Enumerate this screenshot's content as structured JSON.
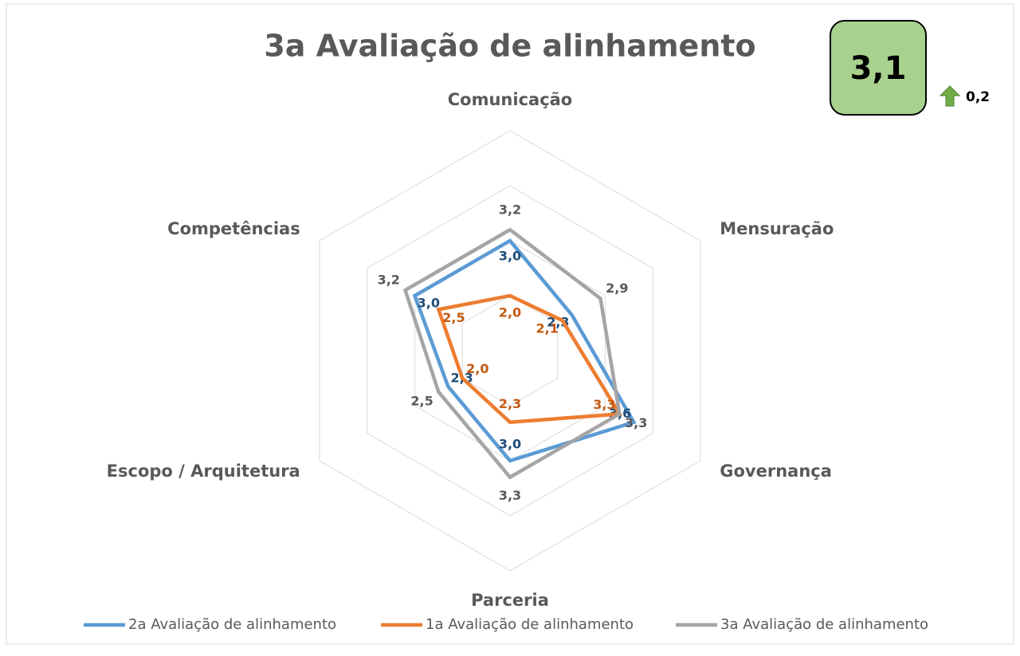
{
  "chart_data": {
    "type": "radar",
    "title": "3a Avaliação de alinhamento",
    "categories": [
      "Comunicação",
      "Mensuração",
      "Governança",
      "Parceria",
      "Escopo / Arquitetura",
      "Competências"
    ],
    "series": [
      {
        "name": "2a Avaliação de alinhamento",
        "color": "#5b9bd5",
        "values": [
          3.0,
          2.3,
          3.6,
          3.0,
          2.3,
          3.0
        ],
        "value_labels": [
          "3,0",
          "2,3",
          "3,6",
          "3,0",
          "2,3",
          "3,0"
        ]
      },
      {
        "name": "1a Avaliação de alinhamento",
        "color": "#ed7d31",
        "values": [
          2.0,
          2.1,
          3.3,
          2.3,
          2.0,
          2.5
        ],
        "value_labels": [
          "2,0",
          "2,1",
          "3,3",
          "2,3",
          "2,0",
          "2,5"
        ]
      },
      {
        "name": "3a Avaliação de alinhamento",
        "color": "#a5a5a5",
        "values": [
          3.2,
          2.9,
          3.3,
          3.3,
          2.5,
          3.2
        ],
        "value_labels": [
          "3,2",
          "2,9",
          "3,3",
          "3,3",
          "2,5",
          "3,2"
        ]
      }
    ],
    "ylim": [
      1,
      5
    ],
    "yticks": [
      1,
      2,
      3,
      4,
      5
    ],
    "grid": true,
    "legend": "bottom",
    "kpi": {
      "value": "3,1",
      "change": "0,2"
    }
  }
}
